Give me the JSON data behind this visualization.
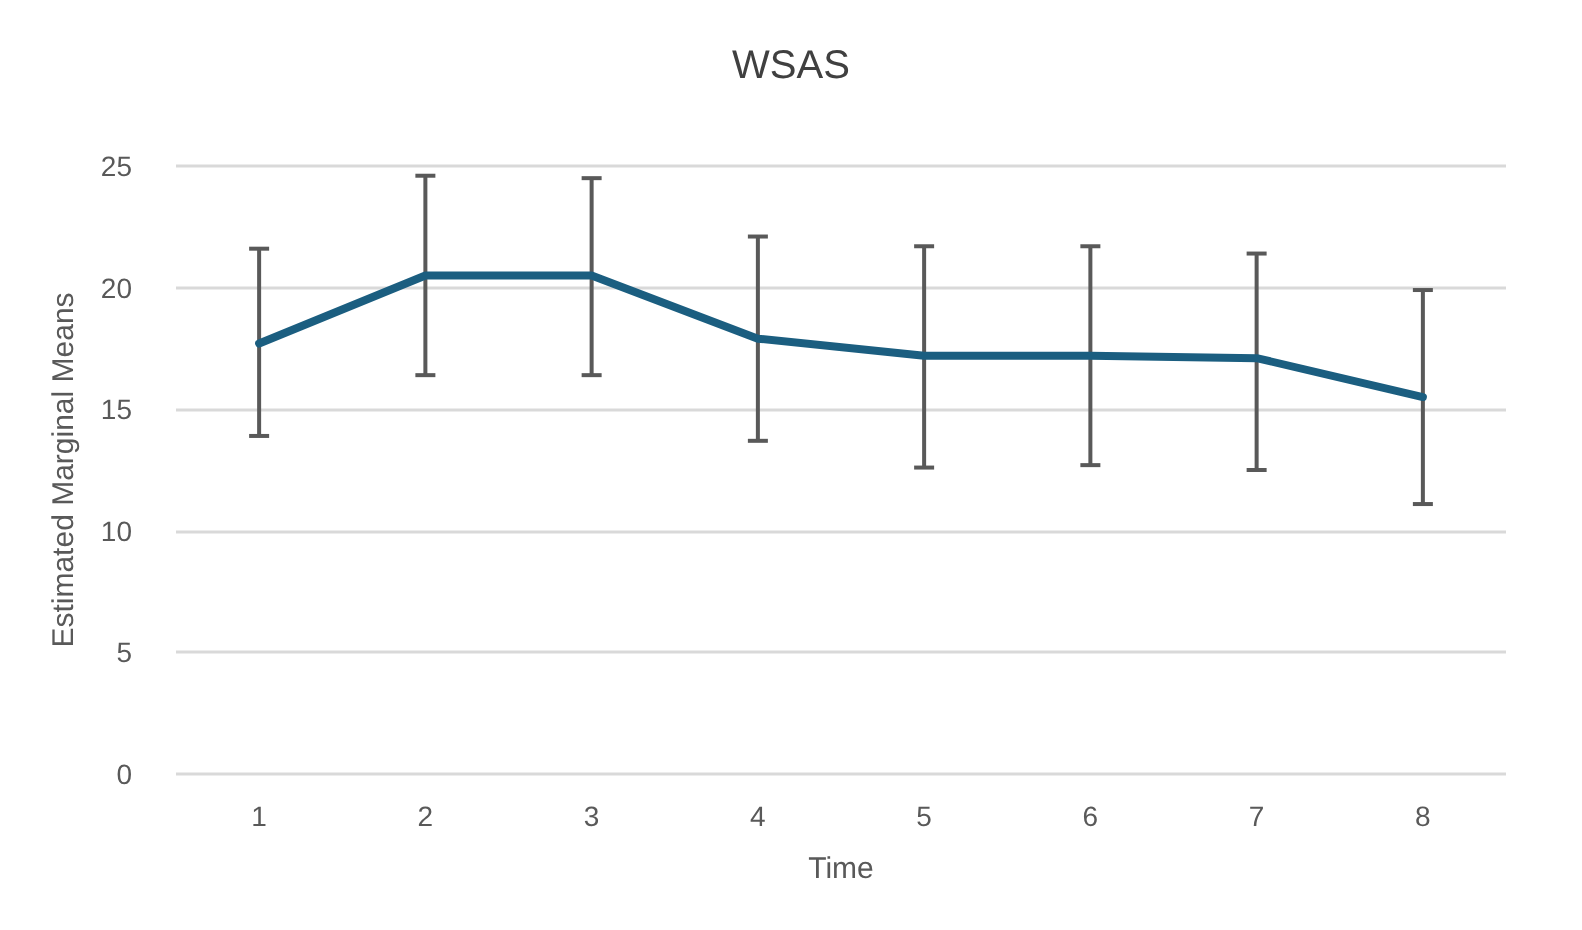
{
  "chart_data": {
    "type": "line",
    "title": "WSAS",
    "xlabel": "Time",
    "ylabel": "Estimated Marginal Means",
    "categories": [
      "1",
      "2",
      "3",
      "4",
      "5",
      "6",
      "7",
      "8"
    ],
    "series": [
      {
        "color": "#1b5e80",
        "values": [
          17.7,
          20.5,
          20.5,
          17.9,
          17.2,
          17.2,
          17.1,
          15.5
        ],
        "errors": [
          [
            13.9,
            21.6
          ],
          [
            16.4,
            24.6
          ],
          [
            16.4,
            24.5
          ],
          [
            13.7,
            22.1
          ],
          [
            12.6,
            21.7
          ],
          [
            12.7,
            21.7
          ],
          [
            12.5,
            21.4
          ],
          [
            11.1,
            19.9
          ]
        ]
      }
    ],
    "ylim": [
      0,
      25
    ],
    "yticks": [
      0,
      5,
      10,
      15,
      20,
      25
    ],
    "grid": "y",
    "marker": "none",
    "line_style": "solid"
  }
}
